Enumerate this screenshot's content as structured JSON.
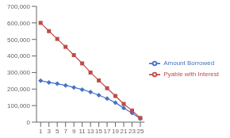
{
  "chart_data": {
    "type": "line",
    "x": [
      1,
      3,
      5,
      7,
      9,
      11,
      13,
      15,
      17,
      19,
      21,
      23,
      25
    ],
    "series": [
      {
        "name": "Amount Borrowed",
        "color": "#4472c4",
        "marker": "diamond",
        "values": [
          250000,
          240000,
          232000,
          222000,
          210000,
          197000,
          182000,
          163000,
          143000,
          118000,
          85000,
          55000,
          20000
        ]
      },
      {
        "name": "Pyable with Interest",
        "color": "#be4b48",
        "marker": "square",
        "values": [
          600000,
          550000,
          503000,
          455000,
          405000,
          355000,
          300000,
          252000,
          205000,
          158000,
          110000,
          70000,
          25000
        ]
      }
    ],
    "xlim": [
      0,
      26
    ],
    "xticks": [
      1,
      3,
      5,
      7,
      9,
      11,
      13,
      15,
      17,
      19,
      21,
      23,
      25
    ],
    "ylim": [
      0,
      700000
    ],
    "yticks": [
      0,
      {
        "value": 100000,
        "label": "100,000"
      },
      {
        "value": 200000,
        "label": "200,000"
      },
      {
        "value": 300000,
        "label": "300,000"
      },
      {
        "value": 400000,
        "label": "400,000"
      },
      {
        "value": 500000,
        "label": "500,000"
      },
      {
        "value": 600000,
        "label": "600,000"
      },
      {
        "value": 700000,
        "label": "700,000"
      }
    ],
    "grid": false,
    "legend": "right"
  }
}
